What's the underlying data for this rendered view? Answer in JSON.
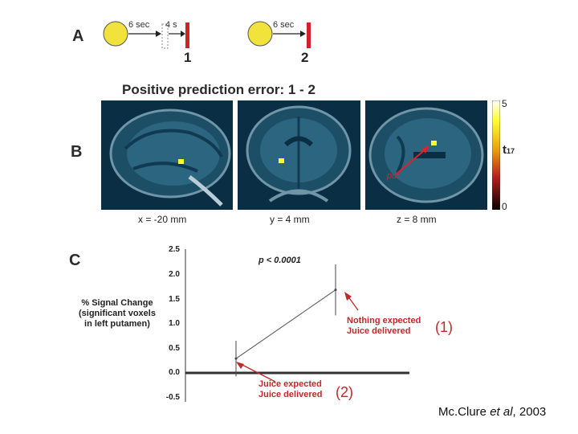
{
  "panel_a": {
    "letter": "A",
    "trial_1": {
      "arrow1_label": "6 sec",
      "arrow2_label": "4 s",
      "number": "1"
    },
    "trial_2": {
      "arrow_label": "6 sec",
      "number": "2"
    },
    "colors": {
      "stimulus_circle": "#f2e23c",
      "reward_bar": "#d4202a"
    }
  },
  "panel_b": {
    "letter": "B",
    "title": "Positive prediction error:  1 - 2",
    "views": [
      {
        "coord": "x = -20 mm"
      },
      {
        "coord": "y = 4 mm"
      },
      {
        "coord": "z = 8 mm",
        "region_label": "put"
      }
    ],
    "colorbar": {
      "max": "5",
      "min": "0",
      "stat": "t",
      "stat_sub": "17"
    },
    "colors": {
      "scan_bg": "#0e3a52",
      "blob": "#ffff33",
      "arrow": "#e0202a"
    }
  },
  "panel_c": {
    "letter": "C",
    "p_value": "p < 0.0001",
    "ylabel_lines": [
      "% Signal Change",
      "(significant voxels",
      "in left putamen)"
    ],
    "yticks": [
      "2.5",
      "2.0",
      "1.5",
      "1.0",
      "0.5",
      "0.0",
      "-0.5"
    ],
    "annot_1": {
      "line1": "Nothing expected",
      "line2": "Juice delivered",
      "num": "(1)"
    },
    "annot_2": {
      "line1": "Juice expected",
      "line2": "Juice delivered",
      "num": "(2)"
    }
  },
  "chart_data": {
    "type": "line",
    "ylabel": "% Signal Change (significant voxels in left putamen)",
    "ylim": [
      -0.5,
      2.5
    ],
    "series": [
      {
        "points": [
          {
            "condition": "Juice expected, Juice delivered (2)",
            "y": 0.35,
            "err_low": 0.0,
            "err_high": 0.7
          },
          {
            "condition": "Nothing expected, Juice delivered (1)",
            "y": 1.7,
            "err_low": 1.2,
            "err_high": 2.2
          }
        ]
      }
    ]
  },
  "citation": {
    "author": "Mc.Clure ",
    "etal": "et al",
    "year": ", 2003"
  }
}
